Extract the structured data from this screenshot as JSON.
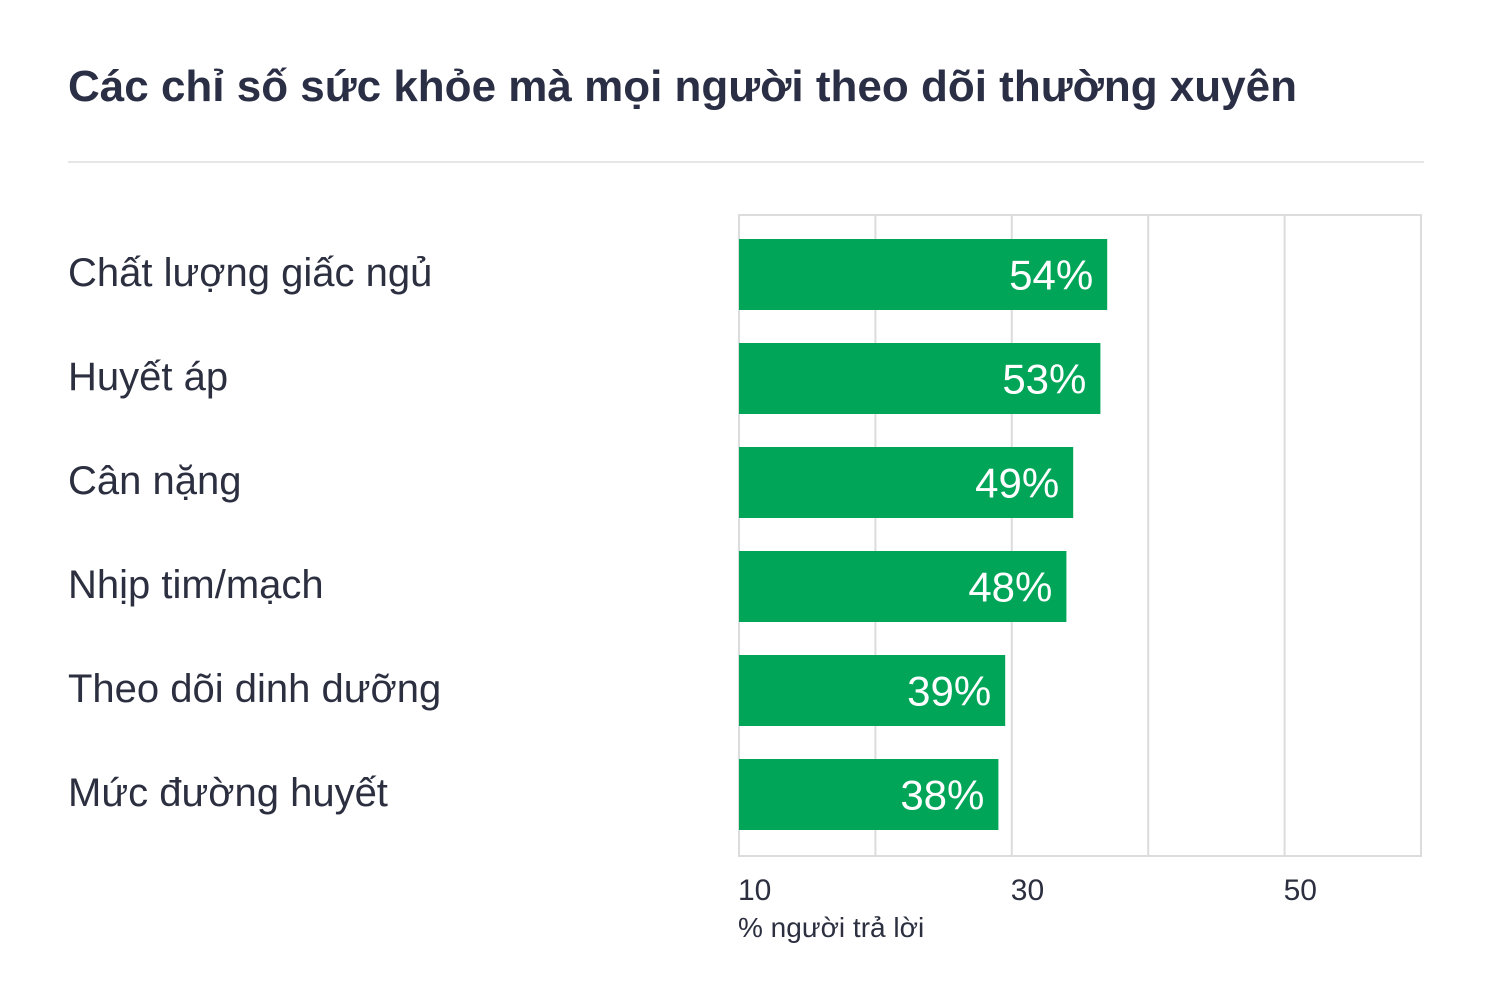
{
  "chart_data": {
    "type": "bar",
    "orientation": "horizontal",
    "title": "Các chỉ số sức khỏe mà mọi người theo dõi thường xuyên",
    "categories": [
      "Chất lượng giấc ngủ",
      "Huyết áp",
      "Cân nặng",
      "Nhịp tim/mạch",
      "Theo dõi dinh dưỡng",
      "Mức đường huyết"
    ],
    "values": [
      54,
      53,
      49,
      48,
      39,
      38
    ],
    "data_labels": [
      "54%",
      "53%",
      "49%",
      "48%",
      "39%",
      "38%"
    ],
    "xlabel": "% người trả lời",
    "xlim": [
      10,
      60
    ],
    "xticks": [
      10,
      30,
      50
    ],
    "xtick_labels": [
      "10",
      "30",
      "50"
    ],
    "grid": true,
    "bar_color": "#00a558",
    "label_color": "#ffffff"
  }
}
